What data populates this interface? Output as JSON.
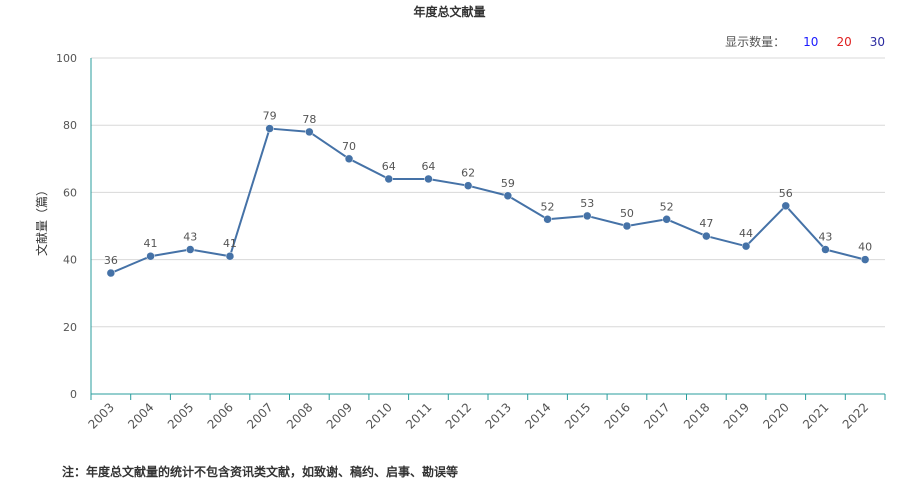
{
  "title": "年度总文献量",
  "display_controls": {
    "label": "显示数量：",
    "options": [
      {
        "label": "10",
        "color": "#1a1aff"
      },
      {
        "label": "20",
        "color": "#e02020"
      },
      {
        "label": "30",
        "color": "#2a2aa0"
      }
    ]
  },
  "note": "注：年度总文献量的统计不包含资讯类文献，如致谢、稿约、启事、勘误等",
  "colors": {
    "line": "#4572A7",
    "axis": "#2a9d9d",
    "grid": "#d8d8d8"
  },
  "chart_data": {
    "type": "line",
    "ylabel": "文献量（篇）",
    "xlabel": "",
    "ylim": [
      0,
      100
    ],
    "yticks": [
      0,
      20,
      40,
      60,
      80,
      100
    ],
    "grid": true,
    "categories": [
      "2003",
      "2004",
      "2005",
      "2006",
      "2007",
      "2008",
      "2009",
      "2010",
      "2011",
      "2012",
      "2013",
      "2014",
      "2015",
      "2016",
      "2017",
      "2018",
      "2019",
      "2020",
      "2021",
      "2022"
    ],
    "series": [
      {
        "values": [
          36,
          41,
          43,
          41,
          79,
          78,
          70,
          64,
          64,
          62,
          59,
          52,
          53,
          50,
          52,
          47,
          44,
          56,
          43,
          40
        ]
      }
    ]
  }
}
